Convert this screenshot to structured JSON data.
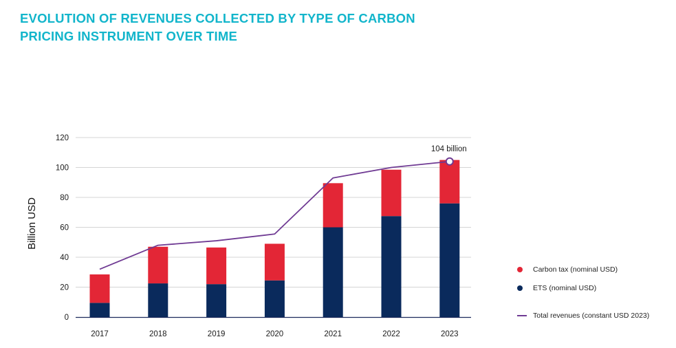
{
  "title_lines": [
    "EVOLUTION OF REVENUES COLLECTED BY TYPE OF CARBON",
    "PRICING INSTRUMENT OVER TIME"
  ],
  "colors": {
    "title": "#12b5cb",
    "carbon_tax": "#e32636",
    "ets": "#0a2a5c",
    "total_line": "#6f3a93",
    "grid": "#d4d4d4",
    "axis": "#1b2a5c"
  },
  "legend": {
    "carbon_tax": "Carbon tax (nominal USD)",
    "ets": "ETS  (nominal USD)",
    "total": "Total revenues (constant USD 2023)"
  },
  "chart_data": {
    "type": "bar",
    "stacked": true,
    "title": "EVOLUTION OF REVENUES COLLECTED BY TYPE OF CARBON PRICING INSTRUMENT OVER TIME",
    "xlabel": "",
    "ylabel": "Billion USD",
    "ylim": [
      0,
      120
    ],
    "yticks": [
      0,
      20,
      40,
      60,
      80,
      100,
      120
    ],
    "categories": [
      "2017",
      "2018",
      "2019",
      "2020",
      "2021",
      "2022",
      "2023"
    ],
    "grid": true,
    "legend_position": "right",
    "series": [
      {
        "name": "ETS  (nominal USD)",
        "kind": "bar",
        "values": [
          9.5,
          22.5,
          22,
          24.5,
          60,
          67.5,
          76
        ]
      },
      {
        "name": "Carbon tax (nominal USD)",
        "kind": "bar",
        "values": [
          19,
          24.5,
          24.5,
          24.5,
          29.5,
          31,
          29
        ]
      },
      {
        "name": "Total revenues (constant USD 2023)",
        "kind": "line",
        "values": [
          32,
          48,
          51,
          55.5,
          93,
          100,
          104
        ]
      }
    ],
    "annotations": [
      {
        "category": "2023",
        "series": "Total revenues (constant USD 2023)",
        "text": "104 billion"
      }
    ]
  }
}
